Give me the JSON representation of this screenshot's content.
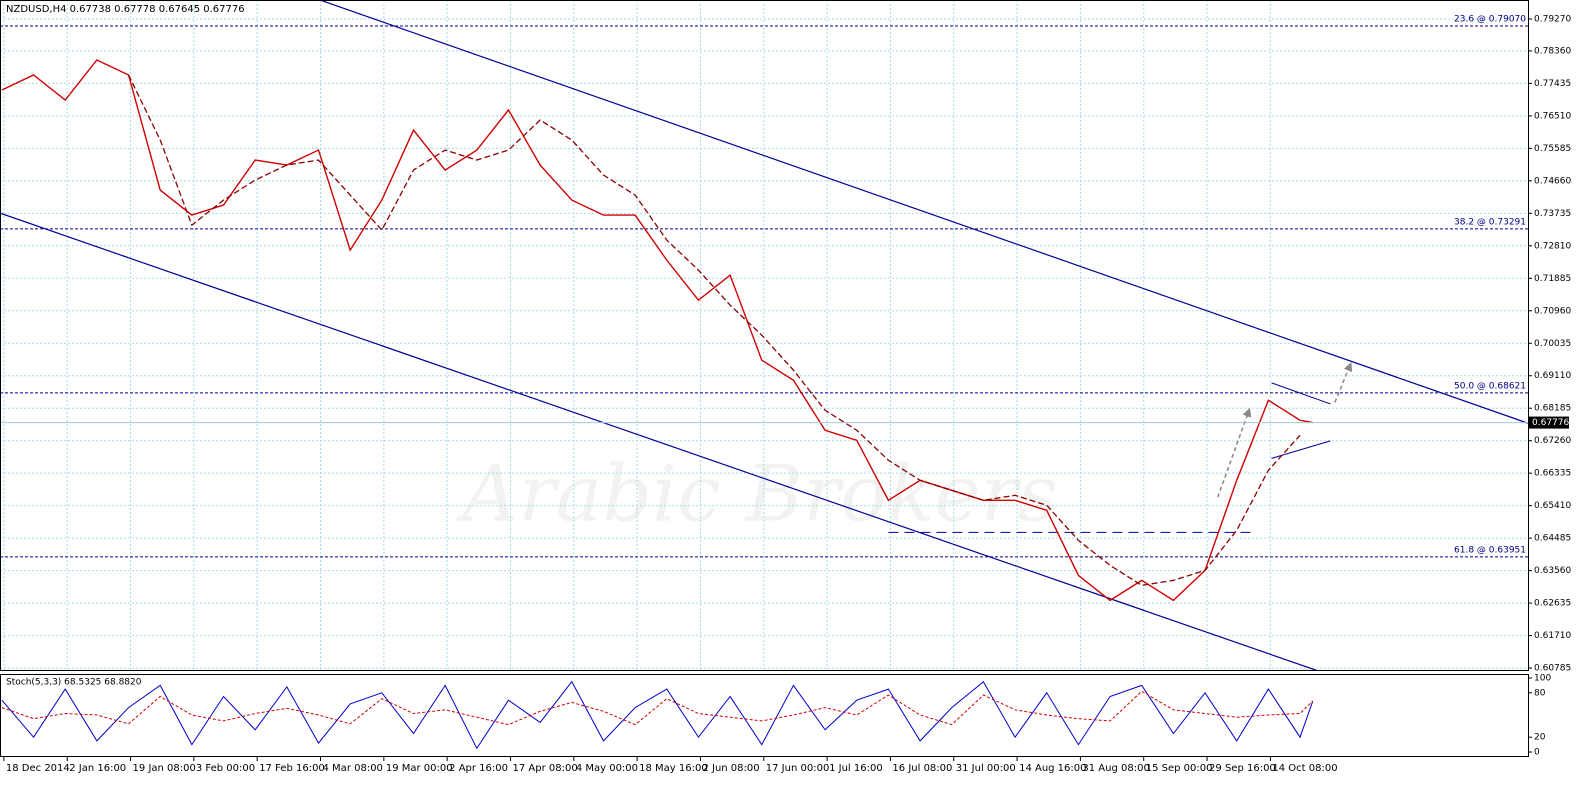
{
  "chart_data": [
    {
      "type": "line",
      "title": "NZDUSD,H4 0.67738 0.67778 0.67645 0.67776",
      "watermark": "Arabic Brokers",
      "grid": true,
      "x": [
        0,
        0.5,
        1,
        1.5,
        2,
        2.5,
        3,
        3.5,
        4,
        4.5,
        5,
        5.5,
        6,
        6.5,
        7,
        7.5,
        8,
        8.5,
        9,
        9.5,
        10,
        10.5,
        11,
        11.5,
        12,
        12.5,
        13,
        13.5,
        14,
        14.5,
        15,
        15.5,
        16,
        16.5,
        17,
        17.5,
        18,
        18.5,
        19,
        19.5,
        20,
        20.5,
        20.7
      ],
      "series": [
        {
          "color": "#d00000",
          "values": [
            0.77247,
            0.77675,
            0.76962,
            0.78102,
            0.77675,
            0.74397,
            0.73685,
            0.7397,
            0.75252,
            0.7511,
            0.75537,
            0.72687,
            0.74112,
            0.76107,
            0.74967,
            0.75537,
            0.76677,
            0.7511,
            0.74112,
            0.73685,
            0.73685,
            0.72402,
            0.71262,
            0.71975,
            0.69552,
            0.68982,
            0.67557,
            0.67272,
            0.65562,
            0.66132,
            0.65847,
            0.65562,
            0.65562,
            0.65277,
            0.63425,
            0.62712,
            0.63282,
            0.62712,
            0.63567,
            0.66132,
            0.68412,
            0.67842,
            0.67776
          ]
        },
        {
          "color": "#8b0000",
          "values": [
            null,
            null,
            null,
            null,
            0.77675,
            0.75822,
            0.734,
            0.74112,
            0.74682,
            0.7511,
            0.75252,
            0.74255,
            0.73257,
            0.74967,
            0.75537,
            0.75252,
            0.75537,
            0.76392,
            0.75822,
            0.74825,
            0.74255,
            0.72972,
            0.72117,
            0.7112,
            0.70265,
            0.69267,
            0.68127,
            0.67557,
            0.66702,
            0.66132,
            0.65847,
            0.65562,
            0.65705,
            0.6542,
            0.64422,
            0.6371,
            0.6314,
            0.63282,
            0.63567,
            0.64707,
            0.66417,
            0.67415,
            null
          ]
        }
      ],
      "xlim": [
        -0.03,
        24.1
      ],
      "ylim": [
        0.6073,
        0.7981
      ],
      "yticks": [
        {
          "value": 0.7927,
          "label": "0.79270"
        },
        {
          "value": 0.7836,
          "label": "0.78360"
        },
        {
          "value": 0.77435,
          "label": "0.77435"
        },
        {
          "value": 0.7651,
          "label": "0.76510"
        },
        {
          "value": 0.75585,
          "label": "0.75585"
        },
        {
          "value": 0.7466,
          "label": "0.74660"
        },
        {
          "value": 0.73735,
          "label": "0.73735"
        },
        {
          "value": 0.7281,
          "label": "0.72810"
        },
        {
          "value": 0.71885,
          "label": "0.71885"
        },
        {
          "value": 0.7096,
          "label": "0.70960"
        },
        {
          "value": 0.70035,
          "label": "0.70035"
        },
        {
          "value": 0.6911,
          "label": "0.69110"
        },
        {
          "value": 0.68185,
          "label": "0.68185"
        },
        {
          "value": 0.6726,
          "label": "0.67260"
        },
        {
          "value": 0.66335,
          "label": "0.66335"
        },
        {
          "value": 0.6541,
          "label": "0.65410"
        },
        {
          "value": 0.64485,
          "label": "0.64485"
        },
        {
          "value": 0.6356,
          "label": "0.63560"
        },
        {
          "value": 0.62635,
          "label": "0.62635"
        },
        {
          "value": 0.6171,
          "label": "0.61710"
        },
        {
          "value": 0.60785,
          "label": "0.60785"
        }
      ],
      "xticks": [
        {
          "value": 0,
          "label": "18 Dec 2014"
        },
        {
          "value": 1,
          "label": "2 Jan 16:00"
        },
        {
          "value": 2,
          "label": "19 Jan 08:00"
        },
        {
          "value": 3,
          "label": "3 Feb 00:00"
        },
        {
          "value": 4,
          "label": "17 Feb 16:00"
        },
        {
          "value": 5,
          "label": "4 Mar 08:00"
        },
        {
          "value": 6,
          "label": "19 Mar 00:00"
        },
        {
          "value": 7,
          "label": "2 Apr 16:00"
        },
        {
          "value": 8,
          "label": "17 Apr 08:00"
        },
        {
          "value": 9,
          "label": "4 May 00:00"
        },
        {
          "value": 10,
          "label": "18 May 16:00"
        },
        {
          "value": 11,
          "label": "2 Jun 08:00"
        },
        {
          "value": 12,
          "label": "17 Jun 00:00"
        },
        {
          "value": 13,
          "label": "1 Jul 16:00"
        },
        {
          "value": 14,
          "label": "16 Jul 08:00"
        },
        {
          "value": 15,
          "label": "31 Jul 00:00"
        },
        {
          "value": 16,
          "label": "14 Aug 16:00"
        },
        {
          "value": 17,
          "label": "31 Aug 08:00"
        },
        {
          "value": 18,
          "label": "15 Sep 00:00"
        },
        {
          "value": 19,
          "label": "29 Sep 16:00"
        },
        {
          "value": 20,
          "label": "14 Oct 08:00"
        }
      ],
      "current_price": {
        "value": 0.67776,
        "label": "0.67776"
      },
      "fib_levels": [
        {
          "value": 0.7907,
          "label": "23.6 @ 0.79070"
        },
        {
          "value": 0.73291,
          "label": "38.2 @ 0.73291"
        },
        {
          "value": 0.68621,
          "label": "50.0 @ 0.68621"
        },
        {
          "value": 0.63951,
          "label": "61.8 @ 0.63951"
        }
      ],
      "channel": [
        {
          "x": [
            5.02,
            24.1
          ],
          "y": [
            0.79812,
            0.67757
          ]
        },
        {
          "x": [
            -0.03,
            20.76
          ],
          "y": [
            0.73741,
            0.6072
          ]
        }
      ],
      "support": {
        "x": [
          14,
          19.8
        ],
        "y": [
          0.6465,
          0.6465
        ]
      },
      "triangle": [
        {
          "x": [
            20.05,
            20.98
          ],
          "y": [
            0.68906,
            0.68306
          ]
        },
        {
          "x": [
            20.05,
            20.98
          ],
          "y": [
            0.66756,
            0.67256
          ]
        }
      ],
      "arrows": [
        {
          "x": [
            19.2,
            19.7
          ],
          "y": [
            0.6565,
            0.6815
          ]
        },
        {
          "x": [
            21.05,
            21.3
          ],
          "y": [
            0.6835,
            0.6945
          ]
        }
      ]
    },
    {
      "type": "line",
      "title": "Stoch(5,3,3) 68.5325 68.8820",
      "x": [
        0,
        0.5,
        1,
        1.5,
        2,
        2.5,
        3,
        3.5,
        4,
        4.5,
        5,
        5.5,
        6,
        6.5,
        7,
        7.5,
        8,
        8.5,
        9,
        9.5,
        10,
        10.5,
        11,
        11.5,
        12,
        12.5,
        13,
        13.5,
        14,
        14.5,
        15,
        15.5,
        16,
        16.5,
        17,
        17.5,
        18,
        18.5,
        19,
        19.5,
        20,
        20.5,
        20.7
      ],
      "series": [
        {
          "color": "#0000cc",
          "values": [
            70,
            20,
            85,
            15,
            60,
            90,
            10,
            75,
            30,
            88,
            12,
            65,
            80,
            25,
            90,
            5,
            70,
            40,
            95,
            15,
            60,
            85,
            20,
            75,
            10,
            90,
            30,
            70,
            85,
            15,
            60,
            95,
            20,
            80,
            10,
            75,
            90,
            25,
            80,
            15,
            85,
            20,
            68.5325
          ]
        },
        {
          "color": "#d00000",
          "values": [
            60,
            45,
            52,
            50,
            38,
            75,
            50,
            42,
            52,
            59,
            50,
            38,
            72,
            52,
            57,
            47,
            37,
            55,
            67,
            55,
            37,
            72,
            52,
            47,
            42,
            50,
            60,
            50,
            77,
            50,
            37,
            77,
            57,
            50,
            45,
            42,
            82,
            57,
            52,
            47,
            50,
            52,
            68.882
          ]
        }
      ],
      "ylim": [
        0,
        100
      ],
      "yticks": [
        100,
        80,
        20,
        0
      ]
    }
  ]
}
